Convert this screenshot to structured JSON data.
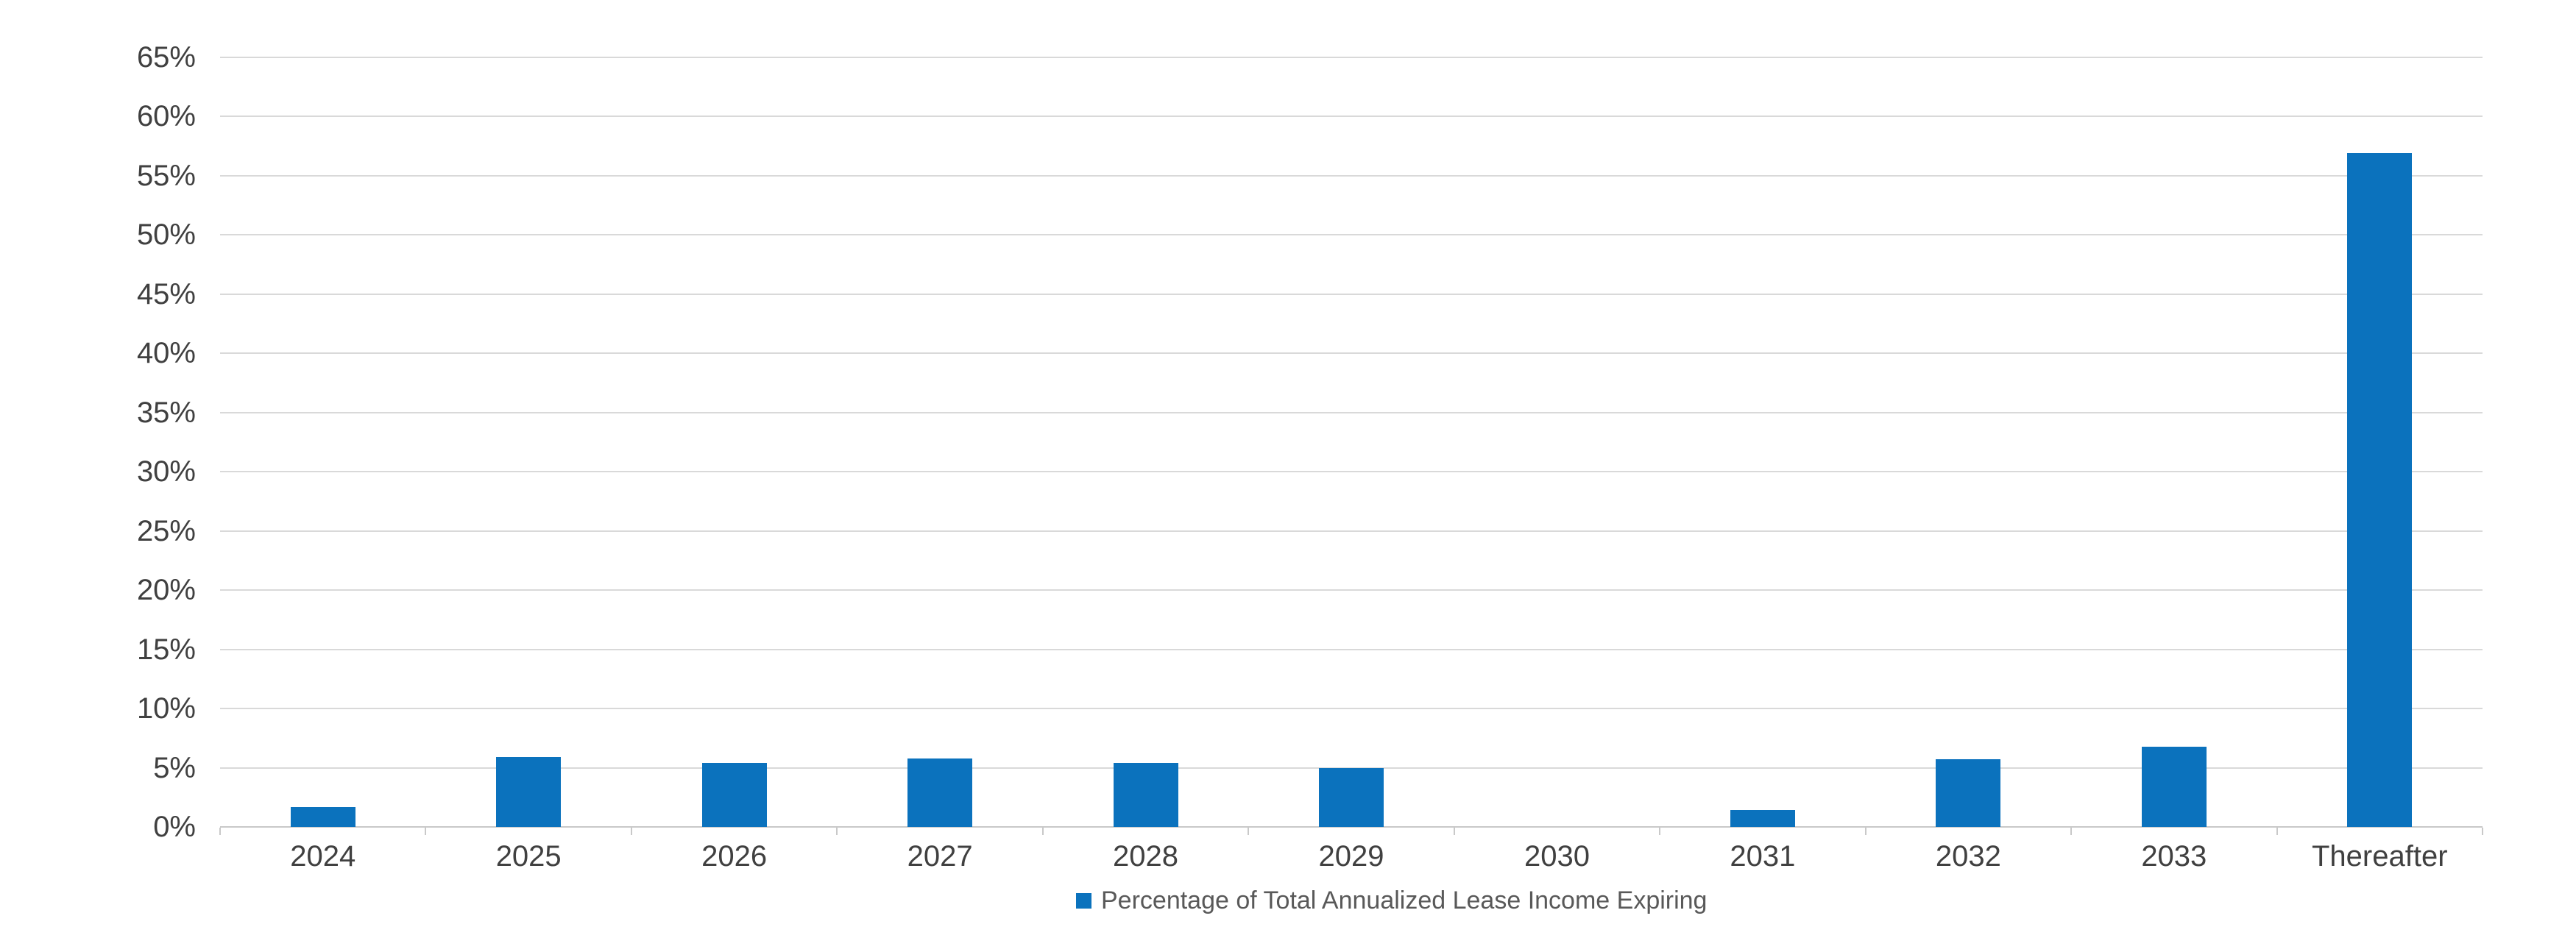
{
  "chart_data": {
    "type": "bar",
    "categories": [
      "2024",
      "2025",
      "2026",
      "2027",
      "2028",
      "2029",
      "2030",
      "2031",
      "2032",
      "2033",
      "Thereafter"
    ],
    "values": [
      1.7,
      5.9,
      5.4,
      5.8,
      5.4,
      5.0,
      0,
      1.4,
      5.7,
      6.8,
      56.9
    ],
    "series_name": "Percentage of Total Annualized Lease Income Expiring",
    "title": "",
    "xlabel": "",
    "ylabel": "",
    "ylim": [
      0,
      65
    ],
    "ytick_step": 5,
    "ytick_labels": [
      "0%",
      "5%",
      "10%",
      "15%",
      "20%",
      "25%",
      "30%",
      "35%",
      "40%",
      "45%",
      "50%",
      "55%",
      "60%",
      "65%"
    ],
    "grid": true,
    "legend_position": "bottom",
    "colors": {
      "bar": "#0b72bd",
      "gridline": "#d9d9d9",
      "axis_line": "#c9c9c9",
      "tick_label": "#404040",
      "legend_text": "#595959",
      "background": "#ffffff"
    }
  }
}
